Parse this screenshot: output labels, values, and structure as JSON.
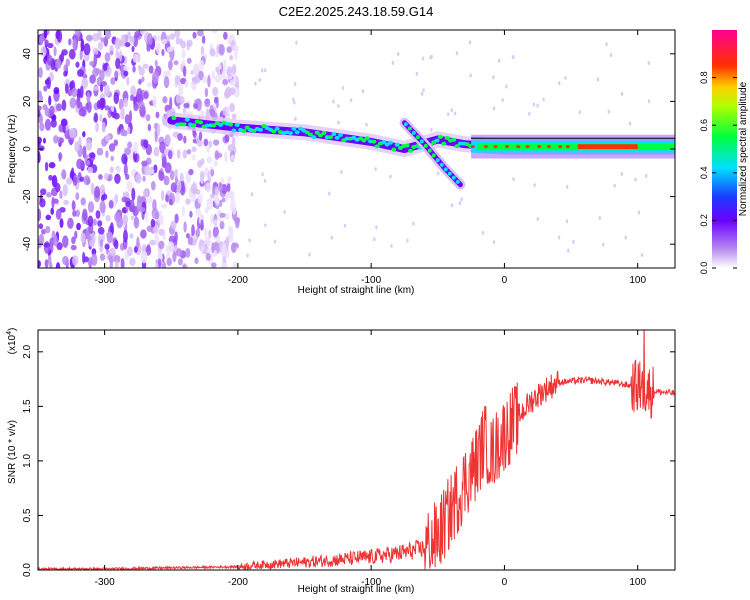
{
  "title": "C2E2.2025.243.18.59.G14",
  "chart_data": [
    {
      "type": "heatmap",
      "xlabel": "Height of straight line (km)",
      "ylabel": "Frequency (Hz)",
      "xlim": [
        -350,
        128
      ],
      "ylim": [
        -50,
        50
      ],
      "x_ticks": [
        -300,
        -200,
        -100,
        0,
        100
      ],
      "y_ticks": [
        -40,
        -20,
        0,
        20,
        40
      ],
      "colorbar": {
        "label": "Normalized spectral amplitude",
        "range": [
          0,
          1
        ],
        "ticks": [
          0.0,
          0.2,
          0.4,
          0.6,
          0.8
        ],
        "tick_labels": [
          "0.0",
          "0.2",
          "0.4",
          "0.6",
          "0.8"
        ]
      },
      "ridge": [
        {
          "x": -250,
          "y": 12
        },
        {
          "x": -200,
          "y": 9
        },
        {
          "x": -150,
          "y": 7
        },
        {
          "x": -100,
          "y": 3
        },
        {
          "x": -75,
          "y": 0
        },
        {
          "x": -50,
          "y": 4
        },
        {
          "x": -30,
          "y": 2
        },
        {
          "x": 0,
          "y": 1
        },
        {
          "x": 50,
          "y": 1
        },
        {
          "x": 100,
          "y": 1
        },
        {
          "x": 128,
          "y": 1
        }
      ],
      "branch": [
        {
          "x": -75,
          "y": 11
        },
        {
          "x": -60,
          "y": 2
        },
        {
          "x": -45,
          "y": -8
        },
        {
          "x": -33,
          "y": -15
        }
      ],
      "noise_region": {
        "x_from": -350,
        "x_to": -200,
        "y_from": -50,
        "y_to": 50
      }
    },
    {
      "type": "line",
      "xlabel": "Height of straight line (km)",
      "ylabel": "SNR (10 * v/v)",
      "multiplier": "(x10",
      "multiplier_exp": "4",
      "multiplier_close": ")",
      "xlim": [
        -350,
        128
      ],
      "ylim": [
        0,
        2.2
      ],
      "x_ticks": [
        -300,
        -200,
        -100,
        0,
        100
      ],
      "y_ticks": [
        0.0,
        0.5,
        1.0,
        1.5,
        2.0
      ],
      "y_tick_labels": [
        "0.0",
        "0.5",
        "1.0",
        "1.5",
        "2.0"
      ],
      "color": "#ee3333",
      "series": [
        {
          "x": [
            -350,
            -300,
            -250,
            -200,
            -180,
            -150,
            -120,
            -100,
            -80,
            -60,
            -50,
            -40,
            -30,
            -20,
            -15,
            -10,
            -5,
            0,
            10,
            20,
            30,
            40,
            60,
            80,
            90,
            100,
            105,
            110,
            128
          ],
          "y": [
            0.01,
            0.01,
            0.02,
            0.03,
            0.05,
            0.07,
            0.1,
            0.12,
            0.15,
            0.2,
            0.3,
            0.55,
            0.8,
            1.0,
            1.2,
            1.05,
            1.15,
            1.25,
            1.4,
            1.55,
            1.65,
            1.72,
            1.74,
            1.72,
            1.7,
            1.68,
            1.65,
            1.64,
            1.62
          ]
        }
      ]
    }
  ]
}
